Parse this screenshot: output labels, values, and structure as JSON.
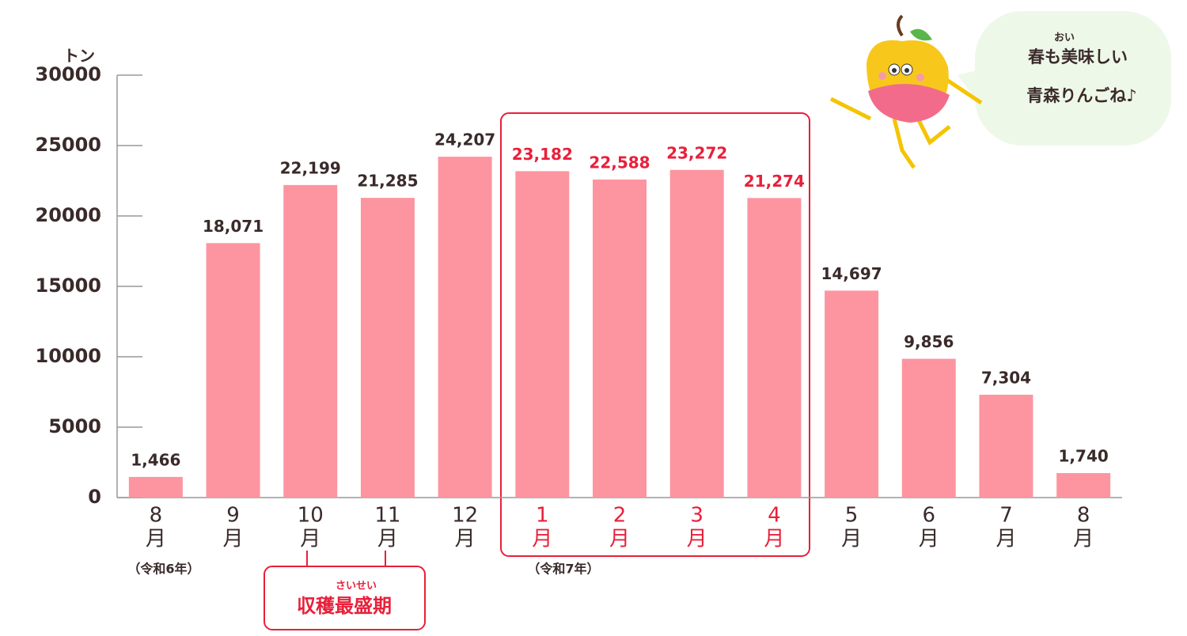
{
  "chart_data": {
    "type": "bar",
    "y_label": "トン",
    "categories": [
      [
        "8",
        "月"
      ],
      [
        "9",
        "月"
      ],
      [
        "10",
        "月"
      ],
      [
        "11",
        "月"
      ],
      [
        "12",
        "月"
      ],
      [
        "1",
        "月"
      ],
      [
        "2",
        "月"
      ],
      [
        "3",
        "月"
      ],
      [
        "4",
        "月"
      ],
      [
        "5",
        "月"
      ],
      [
        "6",
        "月"
      ],
      [
        "7",
        "月"
      ],
      [
        "8",
        "月"
      ]
    ],
    "values": [
      1466,
      18071,
      22199,
      21285,
      24207,
      23182,
      22588,
      23272,
      21274,
      14697,
      9856,
      7304,
      1740
    ],
    "value_labels": [
      "1,466",
      "18,071",
      "22,199",
      "21,285",
      "24,207",
      "23,182",
      "22,588",
      "23,272",
      "21,274",
      "14,697",
      "9,856",
      "7,304",
      "1,740"
    ],
    "color": "#fd95a1",
    "label_colors": [
      "#3a2a2a",
      "#3a2a2a",
      "#3a2a2a",
      "#3a2a2a",
      "#3a2a2a",
      "#e8203a",
      "#e8203a",
      "#e8203a",
      "#e8203a",
      "#3a2a2a",
      "#3a2a2a",
      "#3a2a2a",
      "#3a2a2a"
    ],
    "ylim": [
      0,
      30000
    ],
    "yticks": [
      0,
      5000,
      10000,
      15000,
      20000,
      25000,
      30000
    ],
    "grid": false,
    "annotations": {
      "year1": "（令和6年）",
      "year2": "（令和7年）",
      "peak": "収穫最盛期",
      "peak_ruby": "さいせい",
      "bubble_line1": "春も美味しい",
      "bubble_ruby": "おい",
      "bubble_line2": "青森りんごね♪"
    }
  }
}
